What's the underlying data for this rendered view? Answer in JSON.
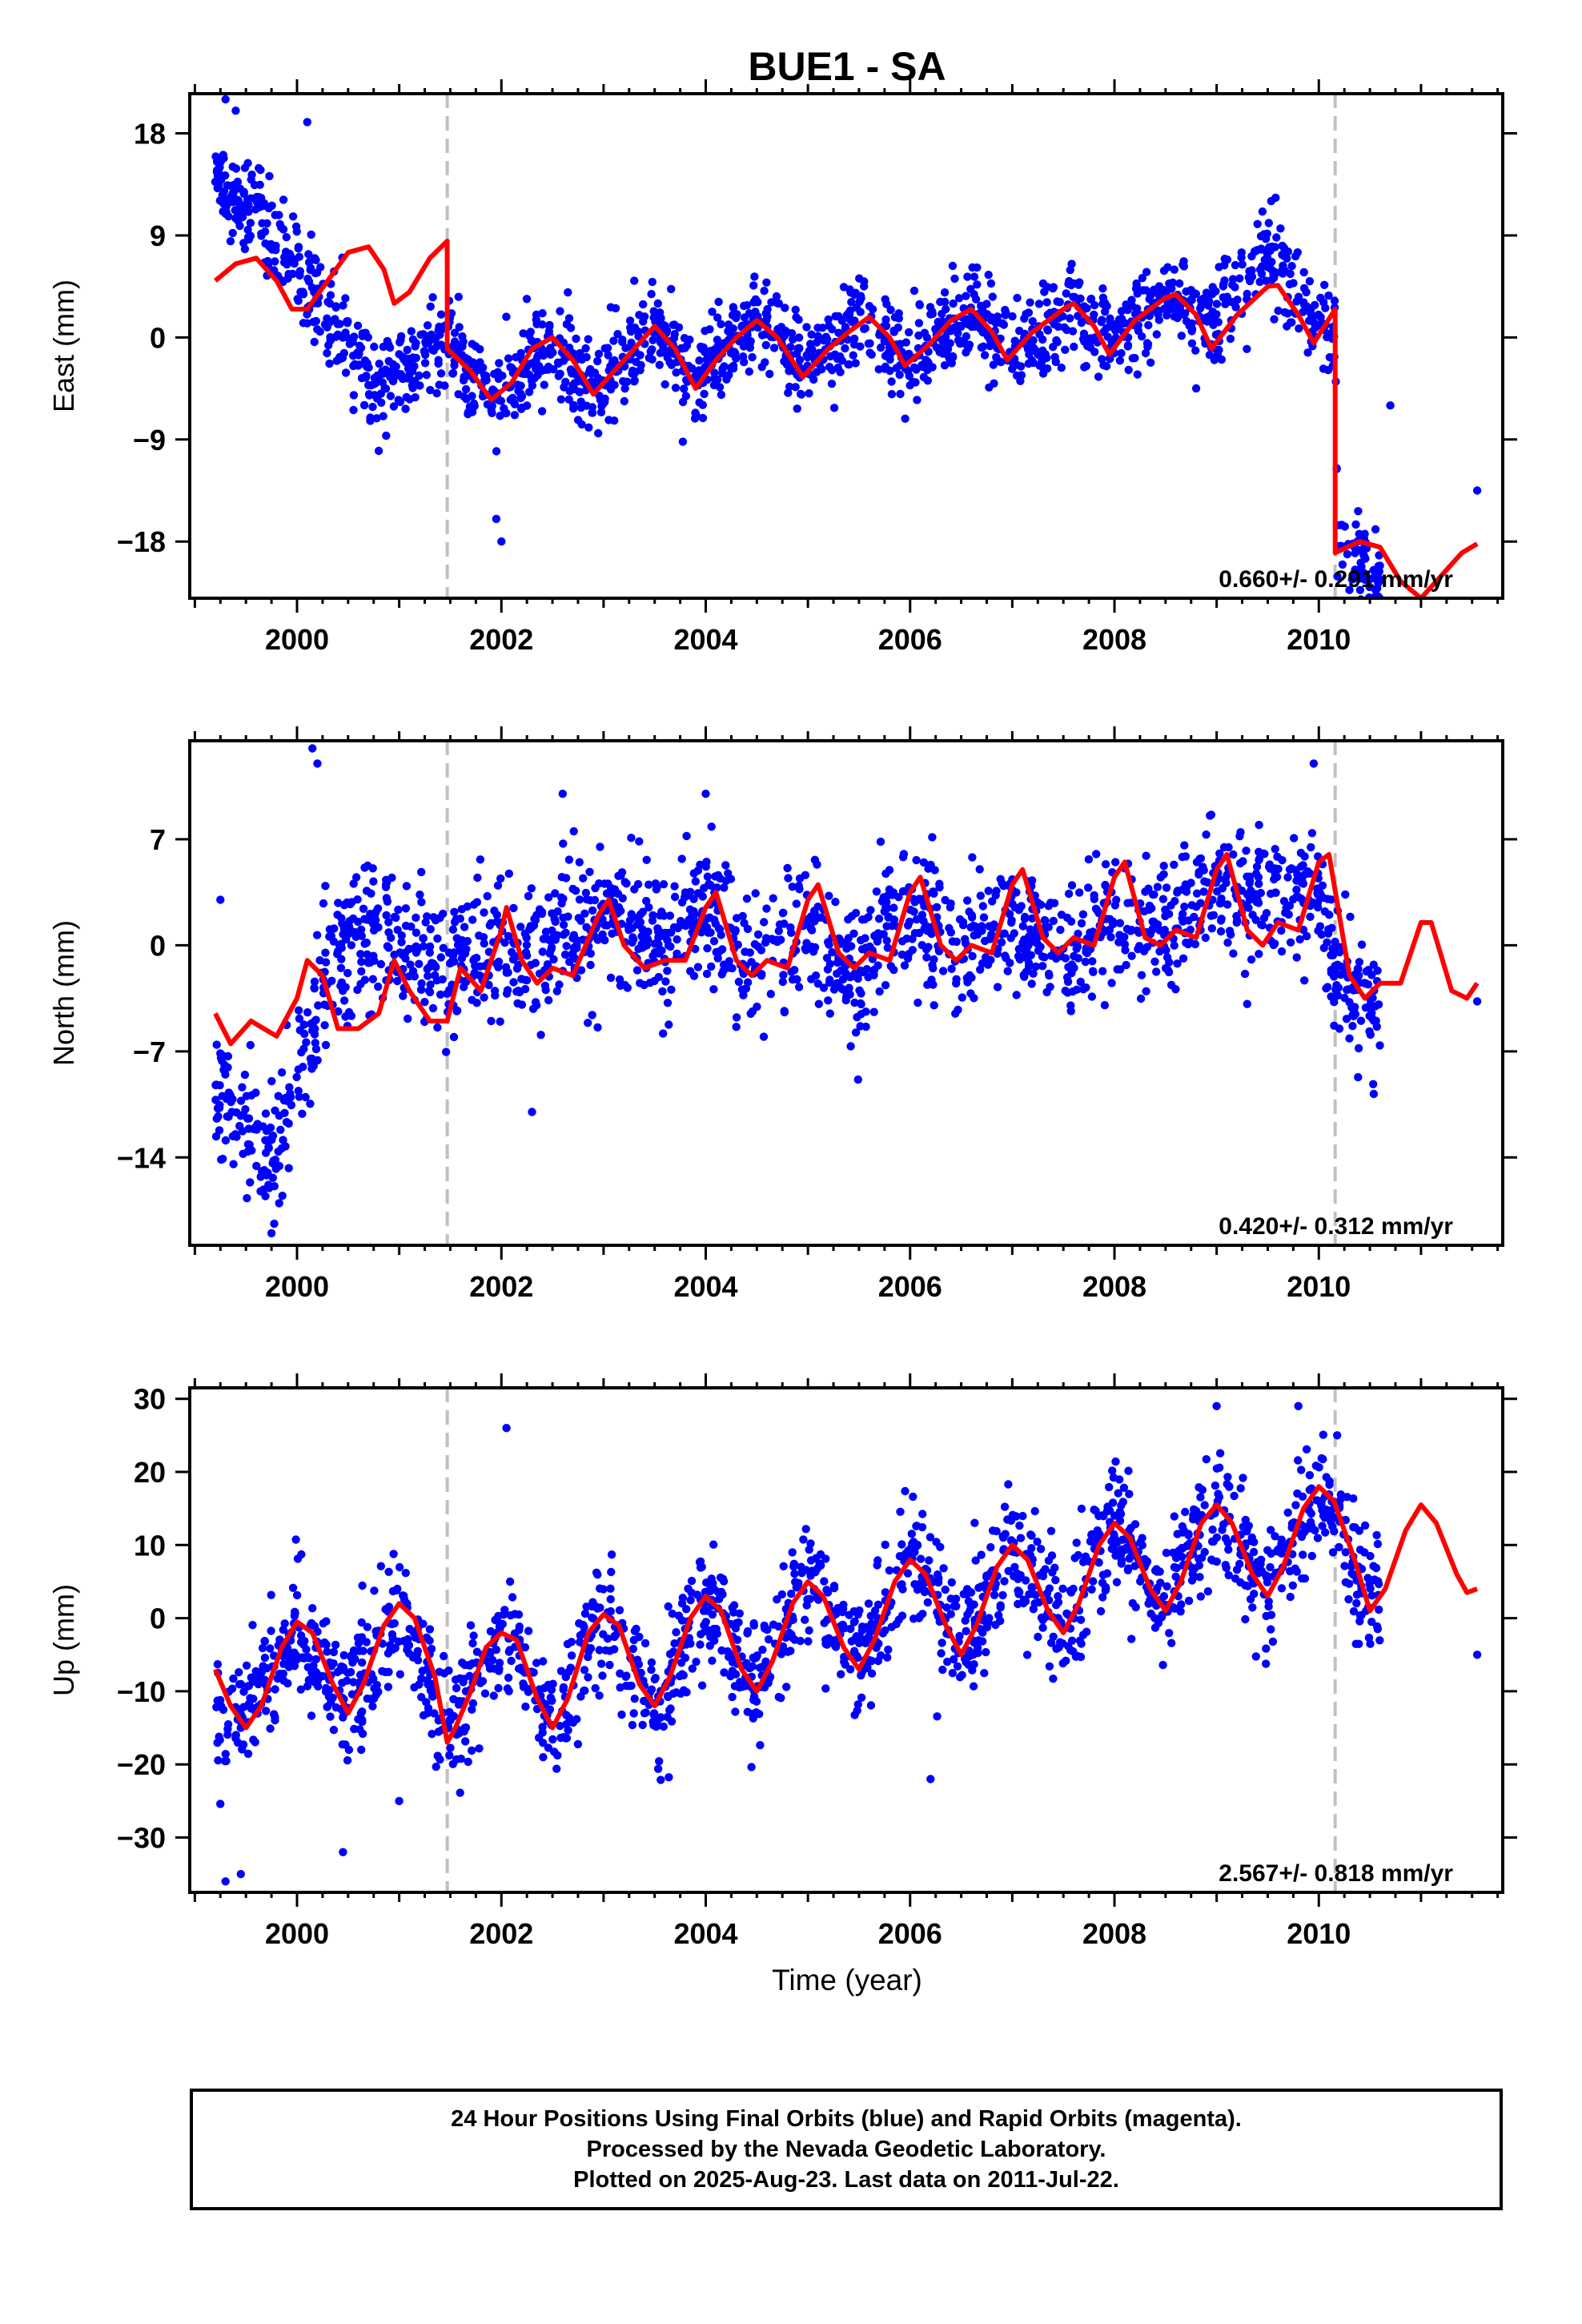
{
  "title": "BUE1 - SA",
  "xlabel": "Time (year)",
  "colors": {
    "points": "#0000ff",
    "model": "#ff0000",
    "offset_line": "#c0c0c0",
    "axis": "#000000"
  },
  "caption": {
    "line1": "24 Hour Positions Using Final Orbits (blue) and Rapid Orbits (magenta).",
    "line2": "Processed by the Nevada Geodetic Laboratory.",
    "line3": "Plotted on 2025-Aug-23. Last data on 2011-Jul-22."
  },
  "chart_data": [
    {
      "type": "scatter",
      "name": "east",
      "ylabel": "East (mm)",
      "rate_label": "0.660+/- 0.291 mm/yr",
      "xlim": [
        1998.95,
        2011.8
      ],
      "ylim": [
        -23.0,
        21.5
      ],
      "xticks": [
        2000,
        2002,
        2004,
        2006,
        2008,
        2010
      ],
      "yticks": [
        18,
        9,
        0,
        -9,
        -18
      ],
      "ytick_labels": [
        "18",
        "9",
        "0",
        "−9",
        "−18"
      ],
      "offsets": [
        2001.47,
        2010.16
      ],
      "anchors": [
        [
          1999.2,
          14
        ],
        [
          1999.6,
          11
        ],
        [
          2000.0,
          6
        ],
        [
          2000.4,
          1
        ],
        [
          2000.8,
          -4
        ],
        [
          2001.2,
          -2
        ],
        [
          2001.47,
          0
        ],
        [
          2001.9,
          -6
        ],
        [
          2002.5,
          0
        ],
        [
          2002.9,
          -5
        ],
        [
          2003.5,
          1
        ],
        [
          2003.9,
          -4
        ],
        [
          2004.5,
          2
        ],
        [
          2005.0,
          -3
        ],
        [
          2005.5,
          2
        ],
        [
          2006.0,
          -2
        ],
        [
          2006.6,
          2
        ],
        [
          2007.0,
          -1
        ],
        [
          2007.6,
          2
        ],
        [
          2008.0,
          0
        ],
        [
          2008.6,
          4
        ],
        [
          2009.0,
          1
        ],
        [
          2009.5,
          8
        ],
        [
          2010.0,
          1
        ],
        [
          2010.16,
          1
        ],
        [
          2010.18,
          -18
        ],
        [
          2010.6,
          -21
        ]
      ],
      "noise": 2.0,
      "outliers": [
        [
          1999.3,
          21
        ],
        [
          1999.4,
          20
        ],
        [
          2000.1,
          19
        ],
        [
          2002.0,
          -18
        ],
        [
          2001.95,
          -16
        ],
        [
          2010.7,
          -6
        ],
        [
          2011.55,
          -13.5
        ],
        [
          2000.8,
          -10
        ],
        [
          2003.3,
          5
        ],
        [
          2009.4,
          10
        ]
      ],
      "model": [
        [
          1999.2,
          5
        ],
        [
          1999.4,
          6.5
        ],
        [
          1999.6,
          7
        ],
        [
          1999.8,
          5
        ],
        [
          1999.95,
          2.5
        ],
        [
          2000.1,
          2.5
        ],
        [
          2000.3,
          5
        ],
        [
          2000.5,
          7.5
        ],
        [
          2000.7,
          8
        ],
        [
          2000.85,
          6
        ],
        [
          2000.95,
          3
        ],
        [
          2001.1,
          4
        ],
        [
          2001.3,
          7
        ],
        [
          2001.47,
          8.5
        ],
        [
          2001.47,
          -1
        ],
        [
          2001.7,
          -3
        ],
        [
          2001.9,
          -5.5
        ],
        [
          2002.1,
          -4
        ],
        [
          2002.3,
          -1
        ],
        [
          2002.5,
          0
        ],
        [
          2002.7,
          -2
        ],
        [
          2002.9,
          -5
        ],
        [
          2003.1,
          -3
        ],
        [
          2003.3,
          -1
        ],
        [
          2003.5,
          1
        ],
        [
          2003.7,
          -1
        ],
        [
          2003.9,
          -4.5
        ],
        [
          2004.1,
          -2
        ],
        [
          2004.3,
          0
        ],
        [
          2004.5,
          1.5
        ],
        [
          2004.7,
          0
        ],
        [
          2004.95,
          -3.5
        ],
        [
          2005.2,
          -1
        ],
        [
          2005.4,
          0.5
        ],
        [
          2005.6,
          1.8
        ],
        [
          2005.8,
          0
        ],
        [
          2005.95,
          -2.5
        ],
        [
          2006.2,
          -0.5
        ],
        [
          2006.4,
          1.5
        ],
        [
          2006.6,
          2.5
        ],
        [
          2006.8,
          0.5
        ],
        [
          2006.95,
          -2
        ],
        [
          2007.2,
          0.5
        ],
        [
          2007.5,
          2.5
        ],
        [
          2007.6,
          3
        ],
        [
          2007.8,
          1
        ],
        [
          2007.95,
          -1.5
        ],
        [
          2008.2,
          1.5
        ],
        [
          2008.5,
          3.5
        ],
        [
          2008.6,
          3.8
        ],
        [
          2008.8,
          2
        ],
        [
          2008.95,
          -1
        ],
        [
          2009.2,
          2
        ],
        [
          2009.5,
          4.5
        ],
        [
          2009.6,
          4.6
        ],
        [
          2009.8,
          2
        ],
        [
          2009.95,
          -0.5
        ],
        [
          2010.16,
          2.5
        ],
        [
          2010.16,
          -19
        ],
        [
          2010.4,
          -18
        ],
        [
          2010.6,
          -18.5
        ],
        [
          2010.8,
          -21.5
        ],
        [
          2011.0,
          -23
        ],
        [
          2011.2,
          -21
        ],
        [
          2011.4,
          -19
        ],
        [
          2011.55,
          -18.2
        ]
      ]
    },
    {
      "type": "scatter",
      "name": "north",
      "ylabel": "North (mm)",
      "rate_label": "0.420+/- 0.312 mm/yr",
      "xlim": [
        1998.95,
        2011.8
      ],
      "ylim": [
        -19.8,
        13.5
      ],
      "xticks": [
        2000,
        2002,
        2004,
        2006,
        2008,
        2010
      ],
      "yticks": [
        7,
        0,
        -7,
        -14
      ],
      "ytick_labels": [
        "7",
        "0",
        "−7",
        "−14"
      ],
      "offsets": [
        2001.47,
        2010.16
      ],
      "anchors": [
        [
          1999.2,
          -9
        ],
        [
          1999.5,
          -12
        ],
        [
          1999.8,
          -14
        ],
        [
          2000.0,
          -8
        ],
        [
          2000.2,
          -4
        ],
        [
          2000.4,
          0
        ],
        [
          2000.8,
          1
        ],
        [
          2001.2,
          -1
        ],
        [
          2001.47,
          -2
        ],
        [
          2001.8,
          0
        ],
        [
          2002.2,
          -1
        ],
        [
          2002.6,
          1
        ],
        [
          2003.0,
          2
        ],
        [
          2003.5,
          0
        ],
        [
          2004.0,
          2
        ],
        [
          2004.5,
          -1
        ],
        [
          2005.0,
          1
        ],
        [
          2005.5,
          -2
        ],
        [
          2006.0,
          3
        ],
        [
          2006.5,
          -1
        ],
        [
          2007.0,
          2
        ],
        [
          2007.5,
          -1
        ],
        [
          2008.0,
          2
        ],
        [
          2008.5,
          1
        ],
        [
          2009.0,
          4
        ],
        [
          2009.5,
          3
        ],
        [
          2010.0,
          4
        ],
        [
          2010.2,
          -2
        ],
        [
          2010.4,
          -5
        ],
        [
          2010.6,
          -3
        ]
      ],
      "noise": 2.3,
      "outliers": [
        [
          2000.15,
          13
        ],
        [
          2000.2,
          12
        ],
        [
          2001.9,
          -5
        ],
        [
          2002.3,
          -11
        ],
        [
          1999.75,
          -19
        ],
        [
          2002.6,
          10
        ],
        [
          2009.95,
          12
        ],
        [
          2011.55,
          -3.7
        ],
        [
          2004.0,
          10
        ],
        [
          1999.25,
          3
        ]
      ],
      "model": [
        [
          1999.2,
          -4.5
        ],
        [
          1999.35,
          -6.5
        ],
        [
          1999.55,
          -5
        ],
        [
          1999.8,
          -6
        ],
        [
          2000.0,
          -3.5
        ],
        [
          2000.1,
          -1
        ],
        [
          2000.25,
          -2
        ],
        [
          2000.4,
          -5.5
        ],
        [
          2000.6,
          -5.5
        ],
        [
          2000.8,
          -4.5
        ],
        [
          2000.95,
          -1
        ],
        [
          2001.1,
          -3
        ],
        [
          2001.3,
          -5
        ],
        [
          2001.47,
          -5
        ],
        [
          2001.6,
          -1.5
        ],
        [
          2001.8,
          -3
        ],
        [
          2002.0,
          1
        ],
        [
          2002.05,
          2.5
        ],
        [
          2002.2,
          -1
        ],
        [
          2002.35,
          -2.5
        ],
        [
          2002.5,
          -1.5
        ],
        [
          2002.7,
          -2
        ],
        [
          2002.95,
          2
        ],
        [
          2003.05,
          3
        ],
        [
          2003.2,
          0
        ],
        [
          2003.4,
          -1.5
        ],
        [
          2003.6,
          -1
        ],
        [
          2003.8,
          -1
        ],
        [
          2004.0,
          2.5
        ],
        [
          2004.1,
          3.5
        ],
        [
          2004.3,
          -1
        ],
        [
          2004.45,
          -2
        ],
        [
          2004.6,
          -1
        ],
        [
          2004.8,
          -1.5
        ],
        [
          2005.0,
          3
        ],
        [
          2005.1,
          4
        ],
        [
          2005.3,
          -0.5
        ],
        [
          2005.45,
          -1.5
        ],
        [
          2005.6,
          -0.5
        ],
        [
          2005.8,
          -1
        ],
        [
          2006.0,
          3.5
        ],
        [
          2006.1,
          4.5
        ],
        [
          2006.3,
          0
        ],
        [
          2006.45,
          -1
        ],
        [
          2006.6,
          0
        ],
        [
          2006.8,
          -0.5
        ],
        [
          2007.0,
          4
        ],
        [
          2007.1,
          5
        ],
        [
          2007.3,
          0.5
        ],
        [
          2007.45,
          -0.5
        ],
        [
          2007.6,
          0.5
        ],
        [
          2007.8,
          0
        ],
        [
          2008.0,
          4.5
        ],
        [
          2008.1,
          5.5
        ],
        [
          2008.3,
          0.5
        ],
        [
          2008.45,
          0
        ],
        [
          2008.6,
          1
        ],
        [
          2008.8,
          0.5
        ],
        [
          2009.0,
          5
        ],
        [
          2009.1,
          6
        ],
        [
          2009.3,
          1
        ],
        [
          2009.45,
          0
        ],
        [
          2009.6,
          1.5
        ],
        [
          2009.8,
          1
        ],
        [
          2010.0,
          5.5
        ],
        [
          2010.1,
          6
        ],
        [
          2010.3,
          -2
        ],
        [
          2010.45,
          -3.5
        ],
        [
          2010.6,
          -2.5
        ],
        [
          2010.8,
          -2.5
        ],
        [
          2011.0,
          1.5
        ],
        [
          2011.1,
          1.5
        ],
        [
          2011.3,
          -3
        ],
        [
          2011.45,
          -3.5
        ],
        [
          2011.55,
          -2.5
        ]
      ]
    },
    {
      "type": "scatter",
      "name": "up",
      "ylabel": "Up (mm)",
      "rate_label": "2.567+/- 0.818 mm/yr",
      "xlim": [
        1998.95,
        2011.8
      ],
      "ylim": [
        -37.5,
        31.5
      ],
      "xticks": [
        2000,
        2002,
        2004,
        2006,
        2008,
        2010
      ],
      "yticks": [
        30,
        20,
        10,
        0,
        -10,
        -20,
        -30
      ],
      "ytick_labels": [
        "30",
        "20",
        "10",
        "0",
        "−10",
        "−20",
        "−30"
      ],
      "offsets": [
        2001.47,
        2010.16
      ],
      "anchors": [
        [
          1999.2,
          -15
        ],
        [
          1999.5,
          -12
        ],
        [
          2000.0,
          -1
        ],
        [
          2000.5,
          -12
        ],
        [
          2001.0,
          2
        ],
        [
          2001.47,
          -15
        ],
        [
          2002.0,
          -2
        ],
        [
          2002.5,
          -14
        ],
        [
          2003.0,
          1
        ],
        [
          2003.5,
          -12
        ],
        [
          2004.0,
          3
        ],
        [
          2004.5,
          -9
        ],
        [
          2005.0,
          5
        ],
        [
          2005.5,
          -6
        ],
        [
          2006.0,
          8
        ],
        [
          2006.5,
          -4
        ],
        [
          2007.0,
          10
        ],
        [
          2007.5,
          -2
        ],
        [
          2008.0,
          13
        ],
        [
          2008.5,
          1
        ],
        [
          2009.0,
          16
        ],
        [
          2009.5,
          4
        ],
        [
          2010.0,
          18
        ],
        [
          2010.3,
          8
        ],
        [
          2010.6,
          2
        ]
      ],
      "noise": 4.2,
      "outliers": [
        [
          1999.3,
          -36
        ],
        [
          1999.45,
          -35
        ],
        [
          2002.05,
          26
        ],
        [
          2000.45,
          -32
        ],
        [
          2009.8,
          29
        ],
        [
          2009.0,
          29
        ],
        [
          2011.55,
          -5
        ],
        [
          2010.18,
          25
        ],
        [
          2001.0,
          -25
        ],
        [
          2006.2,
          -22
        ]
      ],
      "model": [
        [
          1999.2,
          -7
        ],
        [
          1999.35,
          -12
        ],
        [
          1999.5,
          -15
        ],
        [
          1999.65,
          -12
        ],
        [
          1999.85,
          -4
        ],
        [
          2000.0,
          -0.5
        ],
        [
          2000.15,
          -2
        ],
        [
          2000.35,
          -9
        ],
        [
          2000.5,
          -13
        ],
        [
          2000.65,
          -9
        ],
        [
          2000.85,
          -1
        ],
        [
          2001.0,
          2
        ],
        [
          2001.15,
          0
        ],
        [
          2001.35,
          -8
        ],
        [
          2001.47,
          -17
        ],
        [
          2001.55,
          -15
        ],
        [
          2001.7,
          -10
        ],
        [
          2001.85,
          -4
        ],
        [
          2002.0,
          -2
        ],
        [
          2002.15,
          -3
        ],
        [
          2002.35,
          -11
        ],
        [
          2002.5,
          -15
        ],
        [
          2002.65,
          -11
        ],
        [
          2002.85,
          -2
        ],
        [
          2003.0,
          0.5
        ],
        [
          2003.15,
          -1
        ],
        [
          2003.35,
          -9
        ],
        [
          2003.5,
          -12
        ],
        [
          2003.65,
          -8
        ],
        [
          2003.85,
          0
        ],
        [
          2004.0,
          3
        ],
        [
          2004.15,
          1
        ],
        [
          2004.35,
          -7
        ],
        [
          2004.5,
          -10
        ],
        [
          2004.65,
          -6
        ],
        [
          2004.85,
          2
        ],
        [
          2005.0,
          5
        ],
        [
          2005.15,
          3
        ],
        [
          2005.35,
          -4
        ],
        [
          2005.5,
          -7
        ],
        [
          2005.65,
          -3
        ],
        [
          2005.85,
          5
        ],
        [
          2006.0,
          8
        ],
        [
          2006.15,
          6
        ],
        [
          2006.35,
          -1
        ],
        [
          2006.5,
          -5
        ],
        [
          2006.65,
          -1
        ],
        [
          2006.85,
          7
        ],
        [
          2007.0,
          10
        ],
        [
          2007.15,
          8
        ],
        [
          2007.35,
          1
        ],
        [
          2007.5,
          -2
        ],
        [
          2007.65,
          2
        ],
        [
          2007.85,
          10
        ],
        [
          2008.0,
          13
        ],
        [
          2008.15,
          11
        ],
        [
          2008.35,
          4
        ],
        [
          2008.5,
          1
        ],
        [
          2008.65,
          5
        ],
        [
          2008.85,
          13
        ],
        [
          2009.0,
          15.5
        ],
        [
          2009.15,
          13
        ],
        [
          2009.35,
          6
        ],
        [
          2009.5,
          3
        ],
        [
          2009.65,
          7
        ],
        [
          2009.85,
          15
        ],
        [
          2010.0,
          18
        ],
        [
          2010.15,
          16
        ],
        [
          2010.35,
          8
        ],
        [
          2010.5,
          1
        ],
        [
          2010.65,
          4
        ],
        [
          2010.85,
          12
        ],
        [
          2011.0,
          15.5
        ],
        [
          2011.15,
          13
        ],
        [
          2011.35,
          6
        ],
        [
          2011.45,
          3.5
        ],
        [
          2011.55,
          4
        ]
      ]
    }
  ]
}
